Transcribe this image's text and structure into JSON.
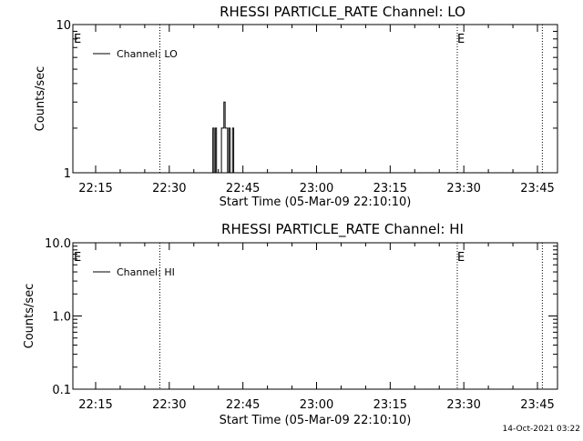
{
  "chart_data": [
    {
      "type": "line",
      "title": "RHESSI  PARTICLE_RATE  Channel:  LO",
      "xlabel": "Start Time (05-Mar-09 22:10:10)",
      "ylabel": "Counts/sec",
      "x_ticks": [
        "22:15",
        "22:30",
        "22:45",
        "23:00",
        "23:15",
        "23:30",
        "23:45"
      ],
      "y_scale": "log",
      "ylim": [
        1,
        10
      ],
      "y_ticks": [
        "1",
        "10"
      ],
      "legend": {
        "entries": [
          "Channel: LO"
        ],
        "placement": "top-left"
      },
      "markers": [
        {
          "label": "E",
          "time": "22:10:10"
        },
        {
          "label": "",
          "time": "22:28:05"
        },
        {
          "label": "E",
          "time": "23:28:40"
        },
        {
          "label": "",
          "time": "23:46:00"
        }
      ],
      "series": [
        {
          "name": "Channel: LO",
          "x": [
            "22:38:45",
            "22:39:00",
            "22:39:15",
            "22:39:30",
            "22:39:45",
            "22:40:00",
            "22:40:15",
            "22:40:30",
            "22:40:45",
            "22:41:00",
            "22:41:15",
            "22:41:30",
            "22:41:45",
            "22:42:00",
            "22:42:15",
            "22:42:30",
            "22:42:45",
            "22:43:00",
            "22:43:15",
            "22:43:30",
            "22:43:45",
            "22:44:00",
            "22:44:15",
            "22:44:30",
            "22:44:45",
            "22:45:00",
            "22:45:15",
            "22:45:30"
          ],
          "values": [
            1,
            2,
            1,
            2,
            1,
            1,
            1,
            1,
            2,
            2,
            3,
            2,
            2,
            1,
            2,
            1,
            1,
            2,
            1,
            1,
            1,
            1,
            1,
            1,
            1,
            1,
            1,
            1
          ]
        }
      ]
    },
    {
      "type": "line",
      "title": "RHESSI  PARTICLE_RATE  Channel:  HI",
      "xlabel": "Start Time (05-Mar-09 22:10:10)",
      "ylabel": "Counts/sec",
      "x_ticks": [
        "22:15",
        "22:30",
        "22:45",
        "23:00",
        "23:15",
        "23:30",
        "23:45"
      ],
      "y_scale": "log",
      "ylim": [
        0.1,
        10
      ],
      "y_ticks": [
        "0.1",
        "1.0",
        "10.0"
      ],
      "legend": {
        "entries": [
          "Channel: HI"
        ],
        "placement": "top-left"
      },
      "markers": [
        {
          "label": "E",
          "time": "22:10:10"
        },
        {
          "label": "",
          "time": "22:28:05"
        },
        {
          "label": "E",
          "time": "23:28:40"
        },
        {
          "label": "",
          "time": "23:46:00"
        }
      ],
      "series": [
        {
          "name": "Channel: HI",
          "x": [],
          "values": []
        }
      ]
    }
  ],
  "footer": {
    "timestamp": "14-Oct-2021 03:22"
  }
}
